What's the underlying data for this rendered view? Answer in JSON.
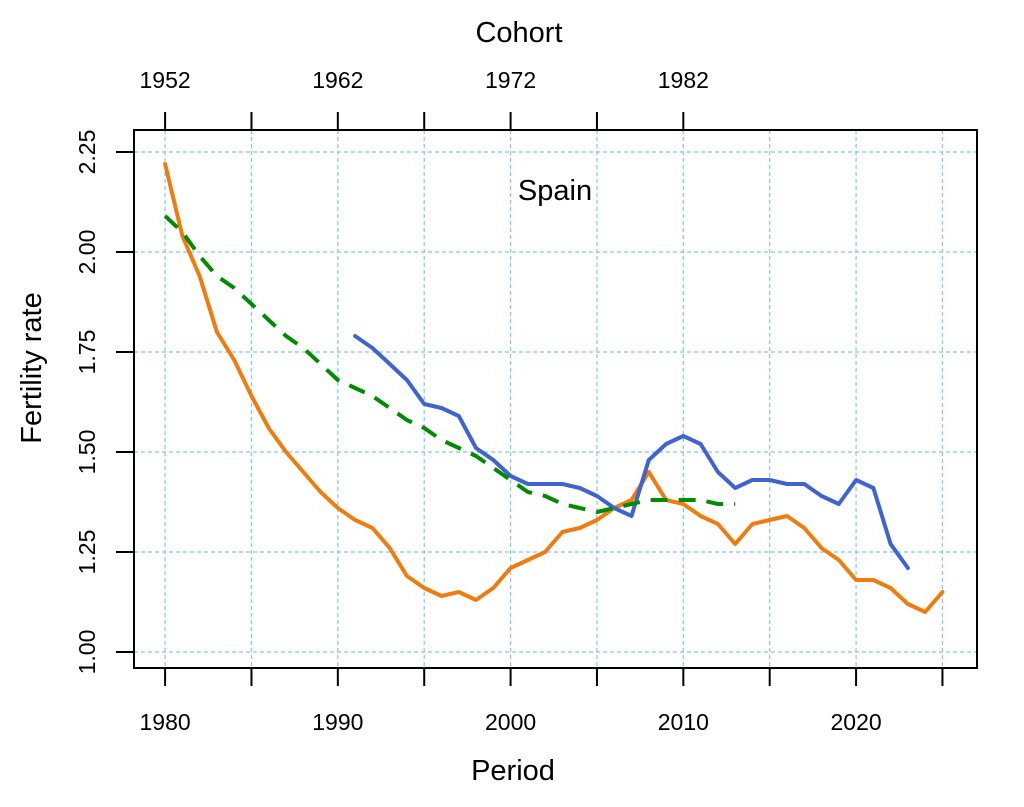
{
  "chart_data": {
    "type": "line",
    "annotation": "Spain",
    "xlabel": "Period",
    "ylabel": "Fertility rate",
    "top_axis_label": "Cohort",
    "xlim": [
      1978.2,
      2027
    ],
    "ylim": [
      0.96,
      2.305
    ],
    "x_ticks": [
      1980,
      1985,
      1990,
      1995,
      2000,
      2005,
      2010,
      2015,
      2020,
      2025
    ],
    "x_tick_labels": [
      {
        "at": 1980,
        "label": "1980"
      },
      {
        "at": 1990,
        "label": "1990"
      },
      {
        "at": 2000,
        "label": "2000"
      },
      {
        "at": 2010,
        "label": "2010"
      },
      {
        "at": 2020,
        "label": "2020"
      }
    ],
    "top_ticks": [
      1980,
      1985,
      1990,
      1995,
      2000,
      2005,
      2010
    ],
    "top_tick_labels": [
      {
        "at": 1980,
        "label": "1952"
      },
      {
        "at": 1990,
        "label": "1962"
      },
      {
        "at": 2000,
        "label": "1972"
      },
      {
        "at": 2010,
        "label": "1982"
      }
    ],
    "y_ticks": [
      1.0,
      1.25,
      1.5,
      1.75,
      2.0,
      2.25
    ],
    "y_tick_labels": [
      "1.00",
      "1.25",
      "1.50",
      "1.75",
      "2.00",
      "2.25"
    ],
    "grid": true,
    "series": [
      {
        "color": "#F07C0F",
        "style": "solid",
        "points": [
          [
            1980,
            2.22
          ],
          [
            1981,
            2.04
          ],
          [
            1982,
            1.94
          ],
          [
            1983,
            1.8
          ],
          [
            1984,
            1.73
          ],
          [
            1985,
            1.64
          ],
          [
            1986,
            1.56
          ],
          [
            1987,
            1.5
          ],
          [
            1988,
            1.45
          ],
          [
            1989,
            1.4
          ],
          [
            1990,
            1.36
          ],
          [
            1991,
            1.33
          ],
          [
            1992,
            1.31
          ],
          [
            1993,
            1.26
          ],
          [
            1994,
            1.19
          ],
          [
            1995,
            1.16
          ],
          [
            1996,
            1.14
          ],
          [
            1997,
            1.15
          ],
          [
            1998,
            1.13
          ],
          [
            1999,
            1.16
          ],
          [
            2000,
            1.21
          ],
          [
            2001,
            1.23
          ],
          [
            2002,
            1.25
          ],
          [
            2003,
            1.3
          ],
          [
            2004,
            1.31
          ],
          [
            2005,
            1.33
          ],
          [
            2006,
            1.36
          ],
          [
            2007,
            1.38
          ],
          [
            2008,
            1.45
          ],
          [
            2009,
            1.38
          ],
          [
            2010,
            1.37
          ],
          [
            2011,
            1.34
          ],
          [
            2012,
            1.32
          ],
          [
            2013,
            1.27
          ],
          [
            2014,
            1.32
          ],
          [
            2015,
            1.33
          ],
          [
            2016,
            1.34
          ],
          [
            2017,
            1.31
          ],
          [
            2018,
            1.26
          ],
          [
            2019,
            1.23
          ],
          [
            2020,
            1.18
          ],
          [
            2021,
            1.18
          ],
          [
            2022,
            1.16
          ],
          [
            2023,
            1.12
          ],
          [
            2024,
            1.1
          ],
          [
            2025,
            1.15
          ]
        ]
      },
      {
        "color": "#3F63CF",
        "style": "solid",
        "points": [
          [
            1991,
            1.79
          ],
          [
            1992,
            1.76
          ],
          [
            1993,
            1.72
          ],
          [
            1994,
            1.68
          ],
          [
            1995,
            1.62
          ],
          [
            1996,
            1.61
          ],
          [
            1997,
            1.59
          ],
          [
            1998,
            1.51
          ],
          [
            1999,
            1.48
          ],
          [
            2000,
            1.44
          ],
          [
            2001,
            1.42
          ],
          [
            2002,
            1.42
          ],
          [
            2003,
            1.42
          ],
          [
            2004,
            1.41
          ],
          [
            2005,
            1.39
          ],
          [
            2006,
            1.36
          ],
          [
            2007,
            1.34
          ],
          [
            2008,
            1.48
          ],
          [
            2009,
            1.52
          ],
          [
            2010,
            1.54
          ],
          [
            2011,
            1.52
          ],
          [
            2012,
            1.45
          ],
          [
            2013,
            1.41
          ],
          [
            2014,
            1.43
          ],
          [
            2015,
            1.43
          ],
          [
            2016,
            1.42
          ],
          [
            2017,
            1.42
          ],
          [
            2018,
            1.39
          ],
          [
            2019,
            1.37
          ],
          [
            2020,
            1.43
          ],
          [
            2021,
            1.41
          ],
          [
            2022,
            1.27
          ],
          [
            2023,
            1.21
          ]
        ]
      },
      {
        "color": "#008C00",
        "style": "dashed",
        "points": [
          [
            1980,
            2.09
          ],
          [
            1981,
            2.05
          ],
          [
            1982,
            1.99
          ],
          [
            1983,
            1.94
          ],
          [
            1984,
            1.91
          ],
          [
            1985,
            1.87
          ],
          [
            1986,
            1.83
          ],
          [
            1987,
            1.79
          ],
          [
            1988,
            1.76
          ],
          [
            1989,
            1.72
          ],
          [
            1990,
            1.68
          ],
          [
            1991,
            1.66
          ],
          [
            1992,
            1.64
          ],
          [
            1993,
            1.61
          ],
          [
            1994,
            1.58
          ],
          [
            1995,
            1.56
          ],
          [
            1996,
            1.53
          ],
          [
            1997,
            1.51
          ],
          [
            1998,
            1.49
          ],
          [
            1999,
            1.46
          ],
          [
            2000,
            1.43
          ],
          [
            2001,
            1.4
          ],
          [
            2002,
            1.39
          ],
          [
            2003,
            1.37
          ],
          [
            2004,
            1.36
          ],
          [
            2005,
            1.35
          ],
          [
            2006,
            1.36
          ],
          [
            2007,
            1.37
          ],
          [
            2008,
            1.38
          ],
          [
            2009,
            1.38
          ],
          [
            2010,
            1.38
          ],
          [
            2011,
            1.38
          ],
          [
            2012,
            1.37
          ],
          [
            2013,
            1.37
          ]
        ]
      }
    ]
  }
}
